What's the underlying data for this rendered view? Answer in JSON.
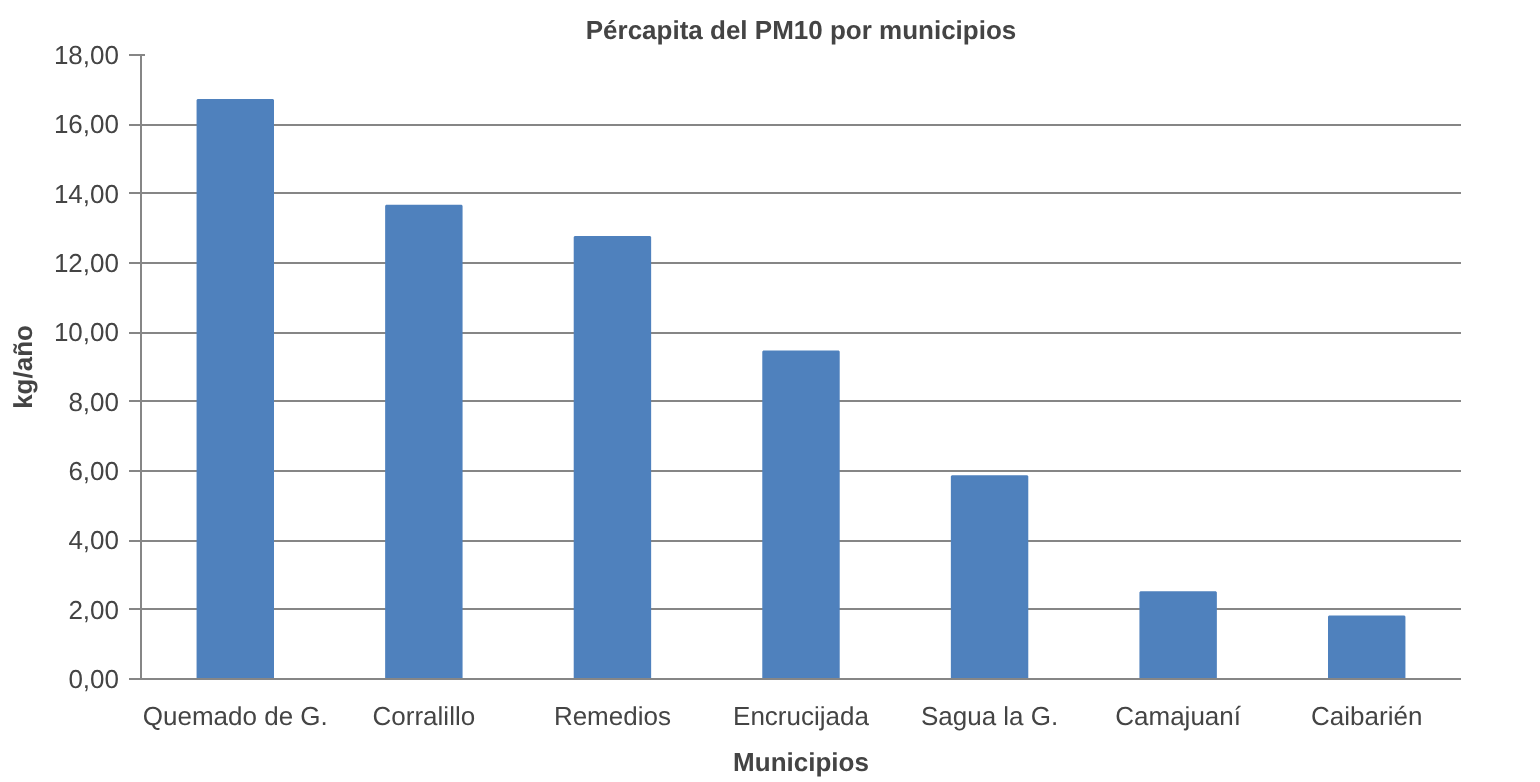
{
  "chart_data": {
    "type": "bar",
    "title": "Pércapita del PM10 por municipios",
    "xlabel": "Municipios",
    "ylabel": "kg/año",
    "categories": [
      "Quemado de G.",
      "Corralillo",
      "Remedios",
      "Encrucijada",
      "Sagua la G.",
      "Camajuaní",
      "Caibarién"
    ],
    "values": [
      16.7,
      13.65,
      12.75,
      9.45,
      5.85,
      2.5,
      1.8
    ],
    "color": "#4f81bd",
    "ylim": [
      0,
      18
    ],
    "yticks": [
      {
        "value": 0,
        "label": "0,00"
      },
      {
        "value": 2,
        "label": "2,00"
      },
      {
        "value": 4,
        "label": "4,00"
      },
      {
        "value": 6,
        "label": "6,00"
      },
      {
        "value": 8,
        "label": "8,00"
      },
      {
        "value": 10,
        "label": "10,00"
      },
      {
        "value": 12,
        "label": "12,00"
      },
      {
        "value": 14,
        "label": "14,00"
      },
      {
        "value": 16,
        "label": "16,00"
      },
      {
        "value": 18,
        "label": "18,00"
      }
    ],
    "grid": "y"
  }
}
